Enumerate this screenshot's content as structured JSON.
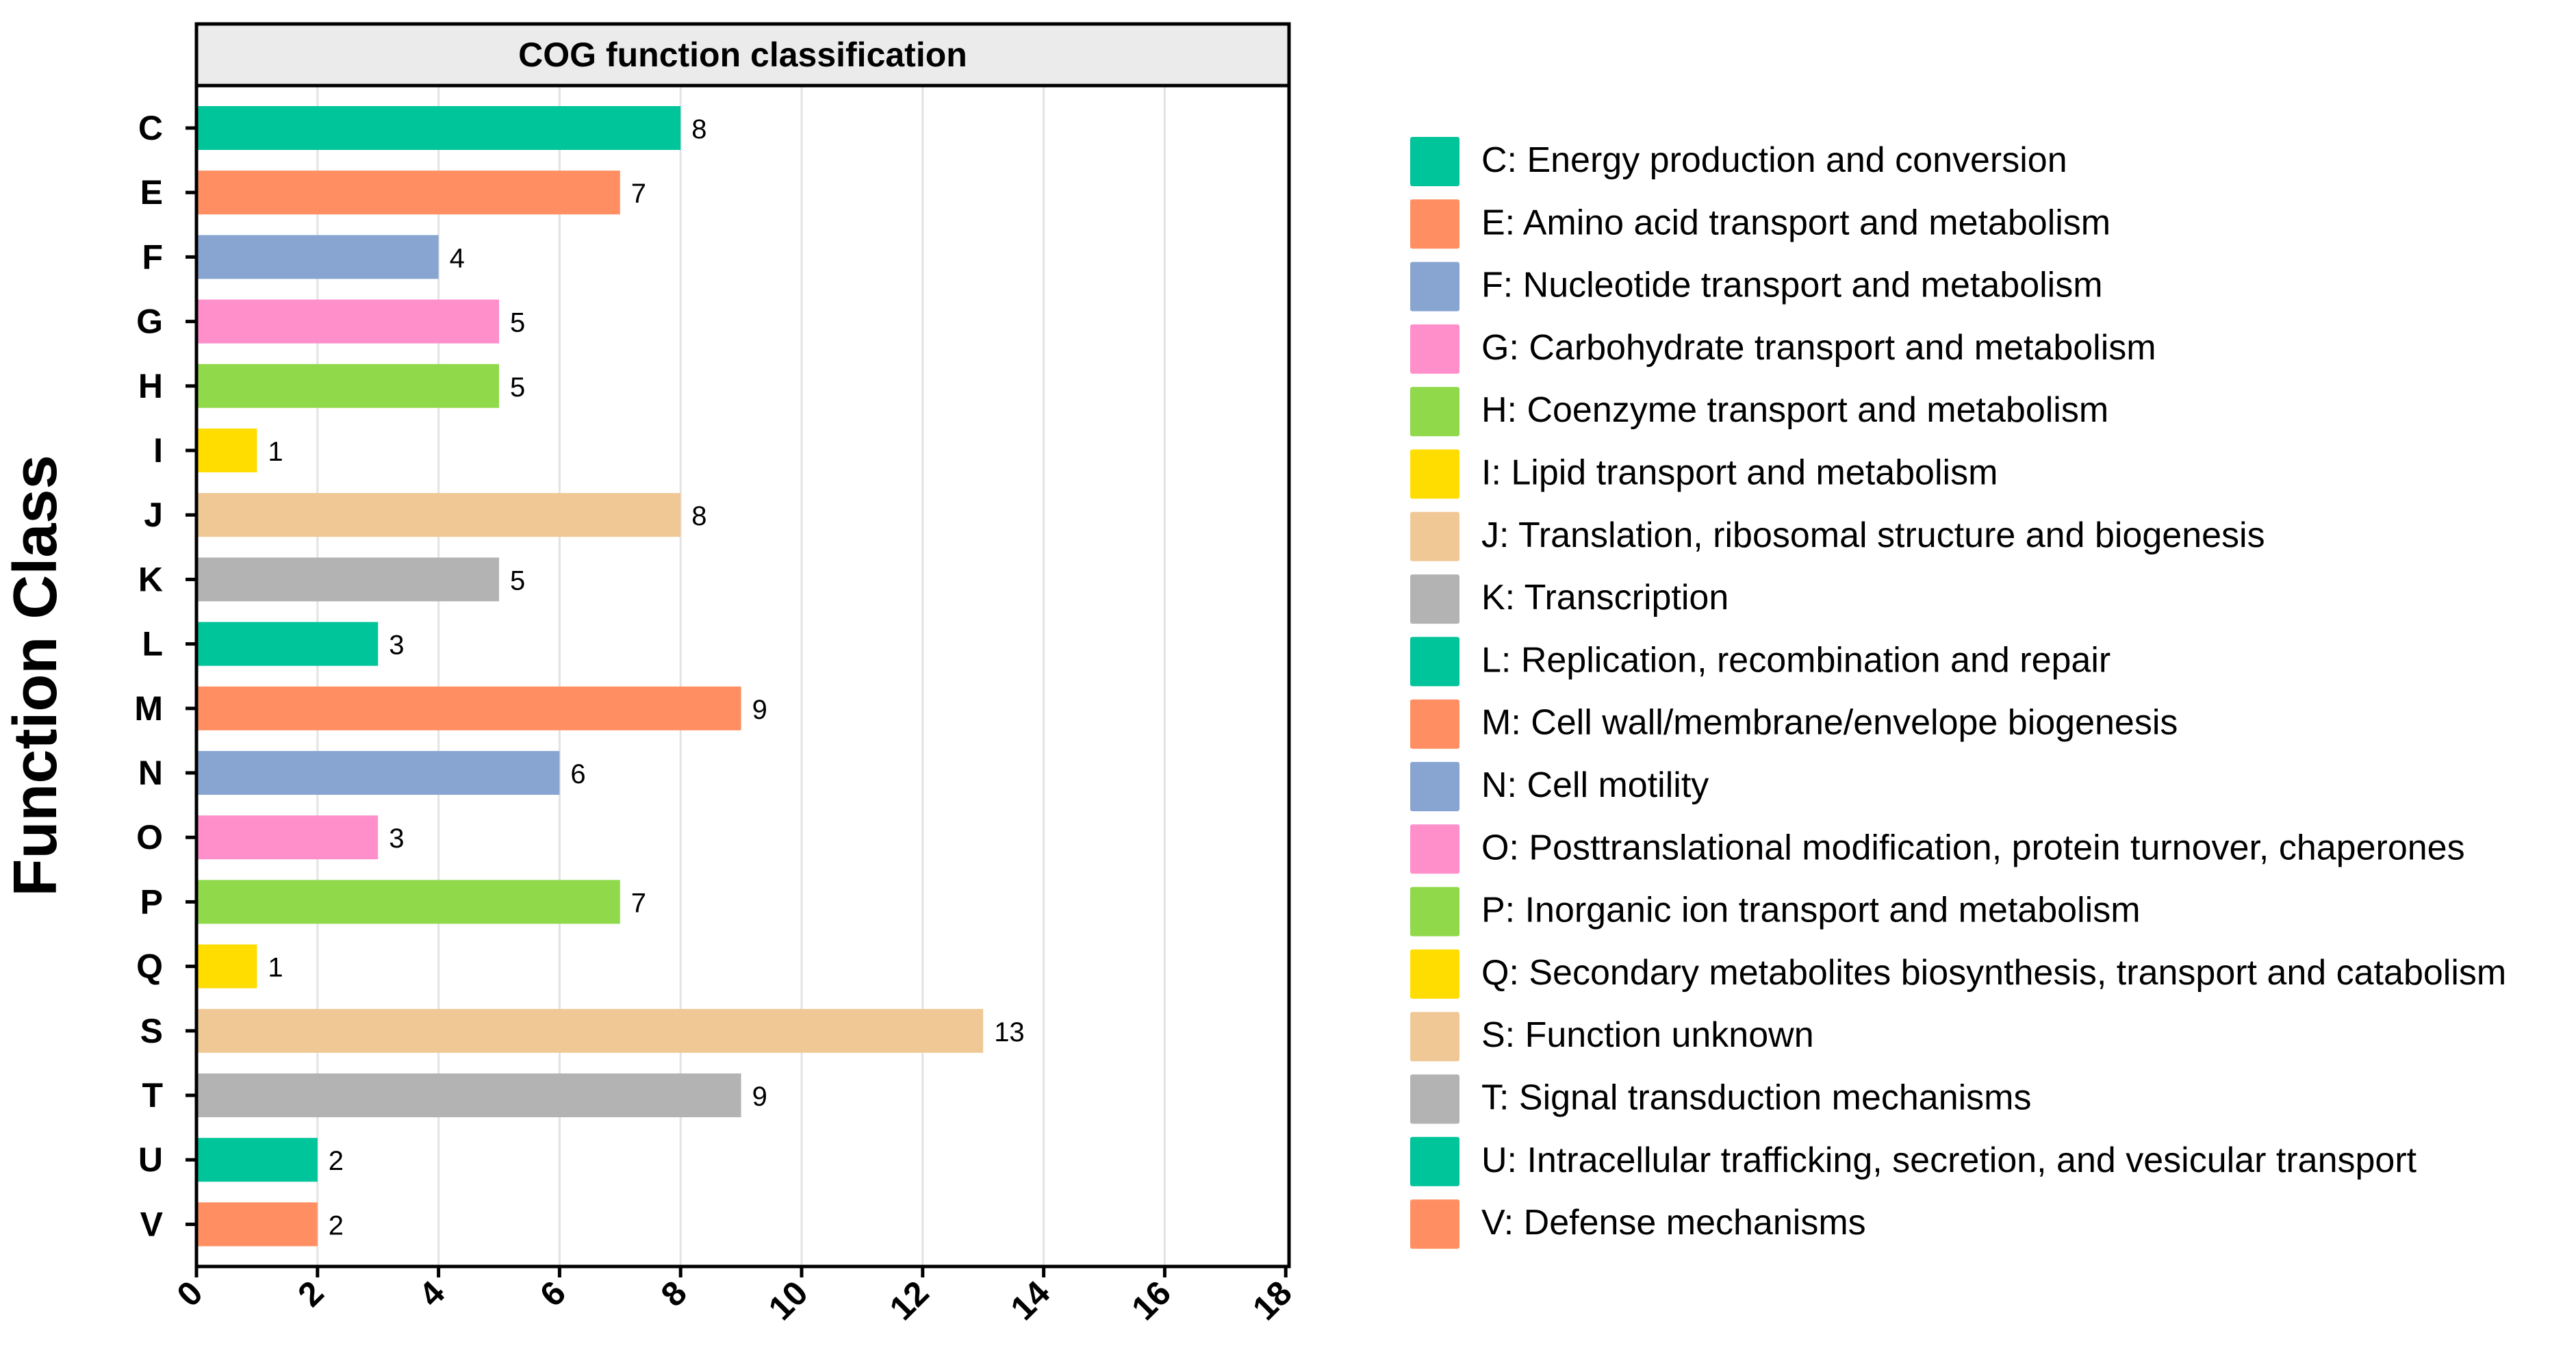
{
  "chart_data": {
    "type": "bar",
    "orientation": "horizontal",
    "title": "COG function classification",
    "ylabel": "Function Class",
    "xlabel": "",
    "xlim": [
      0,
      18
    ],
    "xticks": [
      "0",
      "2",
      "4",
      "6",
      "8",
      "10",
      "12",
      "14",
      "16",
      "18"
    ],
    "grid": "vertical",
    "legend_position": "right",
    "categories": [
      "C",
      "E",
      "F",
      "G",
      "H",
      "I",
      "J",
      "K",
      "L",
      "M",
      "N",
      "O",
      "P",
      "Q",
      "S",
      "T",
      "U",
      "V"
    ],
    "values": [
      8,
      7,
      4,
      5,
      5,
      1,
      8,
      5,
      3,
      9,
      6,
      3,
      7,
      1,
      13,
      9,
      2,
      2
    ],
    "colors": [
      "#00c49a",
      "#ff8f62",
      "#88a5d2",
      "#ff8fcb",
      "#8fd94a",
      "#ffdd00",
      "#f0c896",
      "#b3b3b3",
      "#00c49a",
      "#ff8f62",
      "#88a5d2",
      "#ff8fcb",
      "#8fd94a",
      "#ffdd00",
      "#f0c896",
      "#b3b3b3",
      "#00c49a",
      "#ff8f62"
    ],
    "legend": [
      "C: Energy production and conversion",
      "E: Amino acid transport and metabolism",
      "F: Nucleotide transport and metabolism",
      "G: Carbohydrate transport and metabolism",
      "H: Coenzyme transport and metabolism",
      "I: Lipid transport and metabolism",
      "J: Translation, ribosomal structure and biogenesis",
      "K: Transcription",
      "L: Replication, recombination and repair",
      "M: Cell wall/membrane/envelope biogenesis",
      "N: Cell motility",
      "O: Posttranslational modification, protein turnover, chaperones",
      "P: Inorganic ion transport and metabolism",
      "Q: Secondary metabolites biosynthesis, transport and catabolism",
      "S: Function unknown",
      "T: Signal transduction mechanisms",
      "U: Intracellular trafficking, secretion, and vesicular transport",
      "V: Defense mechanisms"
    ]
  }
}
